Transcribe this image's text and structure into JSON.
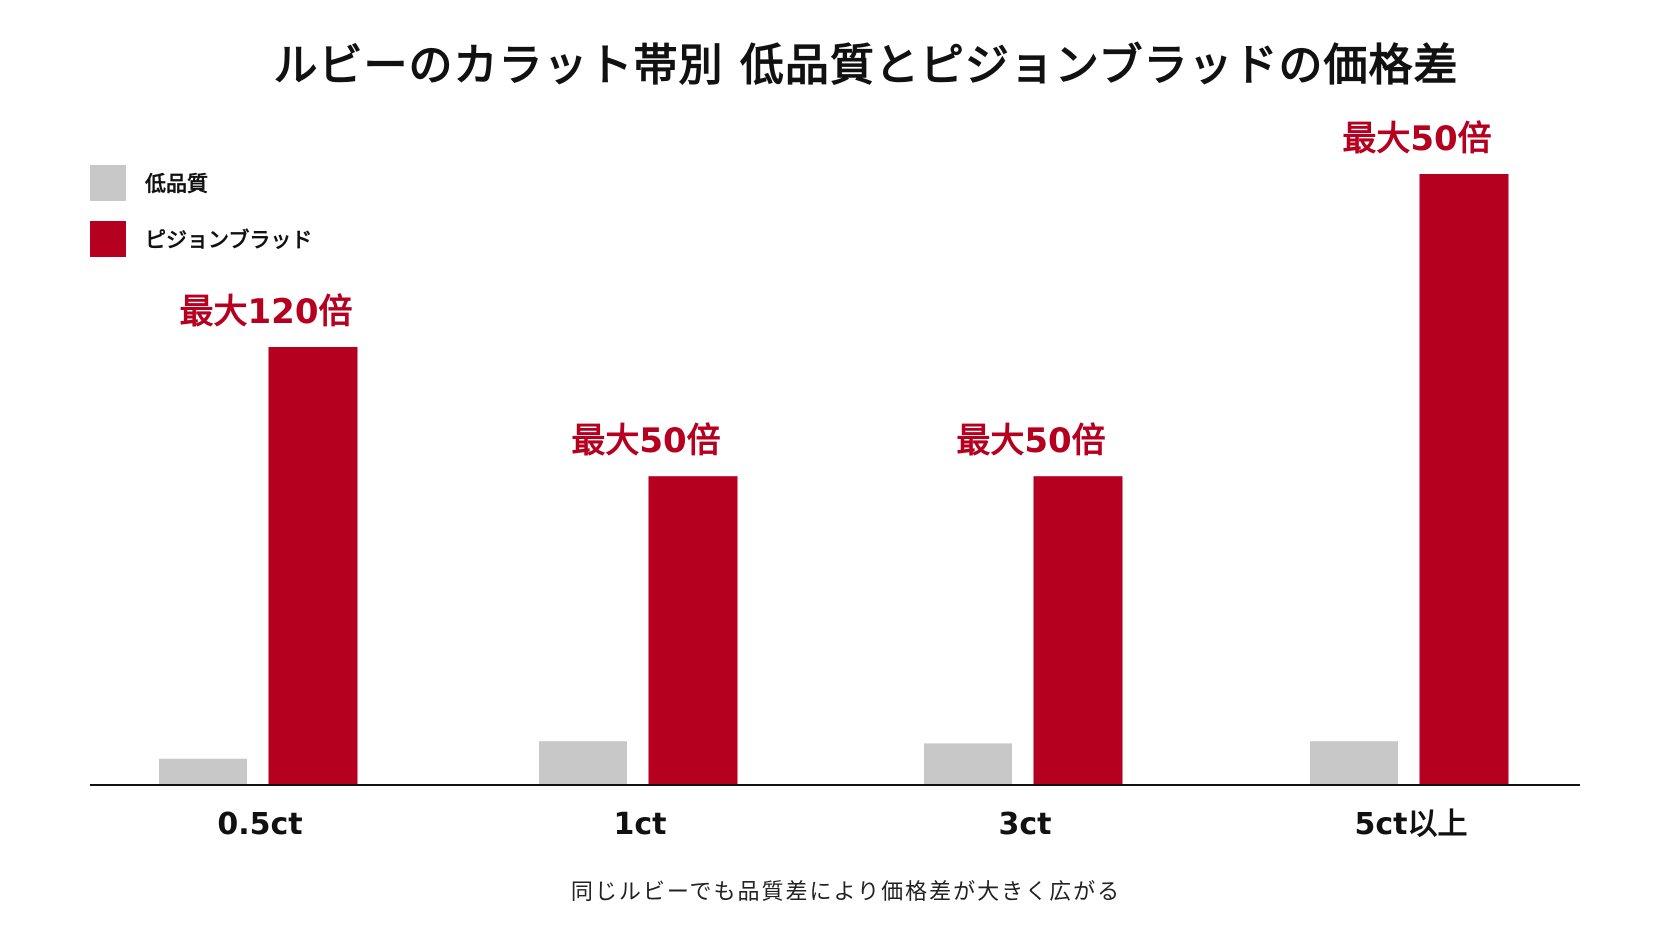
{
  "chart_data": {
    "type": "bar",
    "title": "ルビーのカラット帯別 低品質とピジョンブラッドの価格差",
    "categories": [
      "0.5ct",
      "1ct",
      "3ct",
      "5ct以上"
    ],
    "series": [
      {
        "name": "低品質",
        "color": "#c8c8c8",
        "values": [
          6,
          10,
          9.5,
          10
        ]
      },
      {
        "name": "ピジョンブラッド",
        "color": "#b5001f",
        "values": [
          100,
          70.5,
          70.5,
          139.5
        ],
        "labels": [
          "最大120倍",
          "最大50倍",
          "最大50倍",
          "最大50倍"
        ]
      }
    ],
    "ylim": [
      0,
      150
    ],
    "xlabel": "",
    "ylabel": "",
    "grid": false,
    "legend_position": "top-left",
    "caption": "同じルビーでも品質差により価格差が大きく広がる",
    "colors": {
      "accent": "#b5001f",
      "muted": "#c8c8c8",
      "axis": "#111111",
      "text": "#111111"
    }
  }
}
